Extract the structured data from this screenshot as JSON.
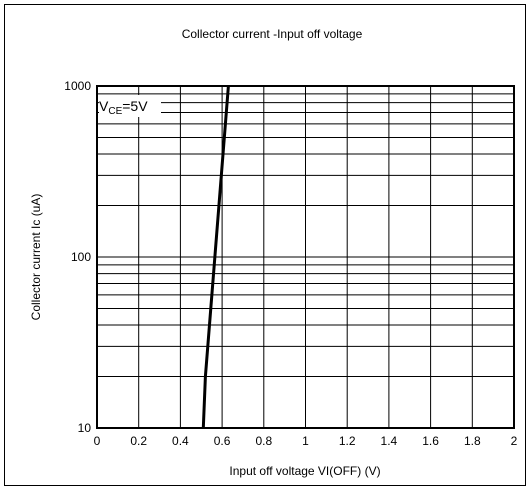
{
  "chart_data": {
    "type": "line",
    "title": "Collector current  -Input off voltage",
    "xlabel": "Input off voltage  VI(OFF) (V)",
    "ylabel": "Collector current   Ic (uA)",
    "annotation": {
      "base": "V",
      "sub": "CE",
      "rest": "=5V"
    },
    "x_ticks": [
      "0",
      "0.2",
      "0.4",
      "0.6",
      "0.8",
      "1",
      "1.2",
      "1.4",
      "1.6",
      "1.8",
      "2"
    ],
    "y_ticks": [
      "10",
      "100",
      "1000"
    ],
    "xlim": [
      0,
      2
    ],
    "ylim": [
      10,
      1000
    ],
    "y_scale": "log",
    "grid": true,
    "series": [
      {
        "x": [
          0.51,
          0.52,
          0.63
        ],
        "y": [
          10,
          20,
          1000
        ],
        "color": "#000000"
      }
    ]
  }
}
